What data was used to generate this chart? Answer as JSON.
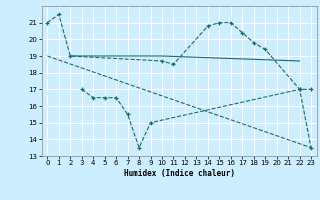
{
  "xlabel": "Humidex (Indice chaleur)",
  "bg_color": "#cceeff",
  "grid_color": "#ffffff",
  "line_color": "#1a6b6b",
  "ylim": [
    13,
    22
  ],
  "xlim": [
    -0.5,
    23.5
  ],
  "yticks": [
    13,
    14,
    15,
    16,
    17,
    18,
    19,
    20,
    21
  ],
  "xticks": [
    0,
    1,
    2,
    3,
    4,
    5,
    6,
    7,
    8,
    9,
    10,
    11,
    12,
    13,
    14,
    15,
    16,
    17,
    18,
    19,
    20,
    21,
    22,
    23
  ],
  "line1_x": [
    0,
    1,
    2,
    10,
    11,
    14,
    15,
    16,
    17,
    18,
    19,
    22,
    23
  ],
  "line1_y": [
    21.0,
    21.5,
    19.0,
    18.7,
    18.5,
    20.8,
    21.0,
    21.0,
    20.4,
    19.8,
    19.4,
    17.0,
    17.0
  ],
  "line2_x": [
    2,
    10,
    22
  ],
  "line2_y": [
    19.0,
    19.0,
    18.7
  ],
  "line3_x": [
    0,
    23
  ],
  "line3_y": [
    19.0,
    13.5
  ],
  "line4_x": [
    3,
    4,
    5,
    6,
    7,
    8,
    9,
    22,
    23
  ],
  "line4_y": [
    17.0,
    16.5,
    16.5,
    16.5,
    15.5,
    13.5,
    15.0,
    17.0,
    13.5
  ]
}
